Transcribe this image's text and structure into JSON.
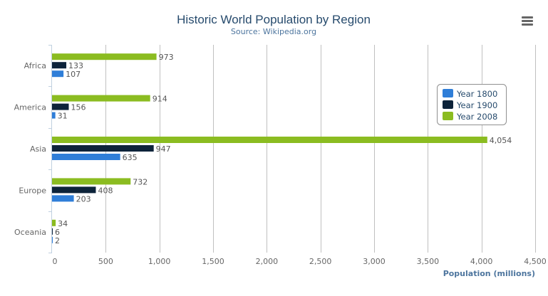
{
  "chart_data": {
    "type": "bar",
    "orientation": "horizontal",
    "title": "Historic World Population by Region",
    "subtitle": "Source: Wikipedia.org",
    "categories": [
      "Africa",
      "America",
      "Asia",
      "Europe",
      "Oceania"
    ],
    "series": [
      {
        "name": "Year 1800",
        "color": "#2f7ed8",
        "values": [
          107,
          31,
          635,
          203,
          2
        ]
      },
      {
        "name": "Year 1900",
        "color": "#0d233a",
        "values": [
          133,
          156,
          947,
          408,
          6
        ]
      },
      {
        "name": "Year 2008",
        "color": "#8bbc21",
        "values": [
          973,
          914,
          4054,
          732,
          34
        ]
      }
    ],
    "xlabel": "Population (millions)",
    "ylabel": "",
    "xlim": [
      0,
      4500
    ],
    "xticks": [
      0,
      500,
      1000,
      1500,
      2000,
      2500,
      3000,
      3500,
      4000,
      4500
    ],
    "grid": true,
    "data_labels": true,
    "legend": "right"
  },
  "menu_icon": "hamburger-menu-icon"
}
